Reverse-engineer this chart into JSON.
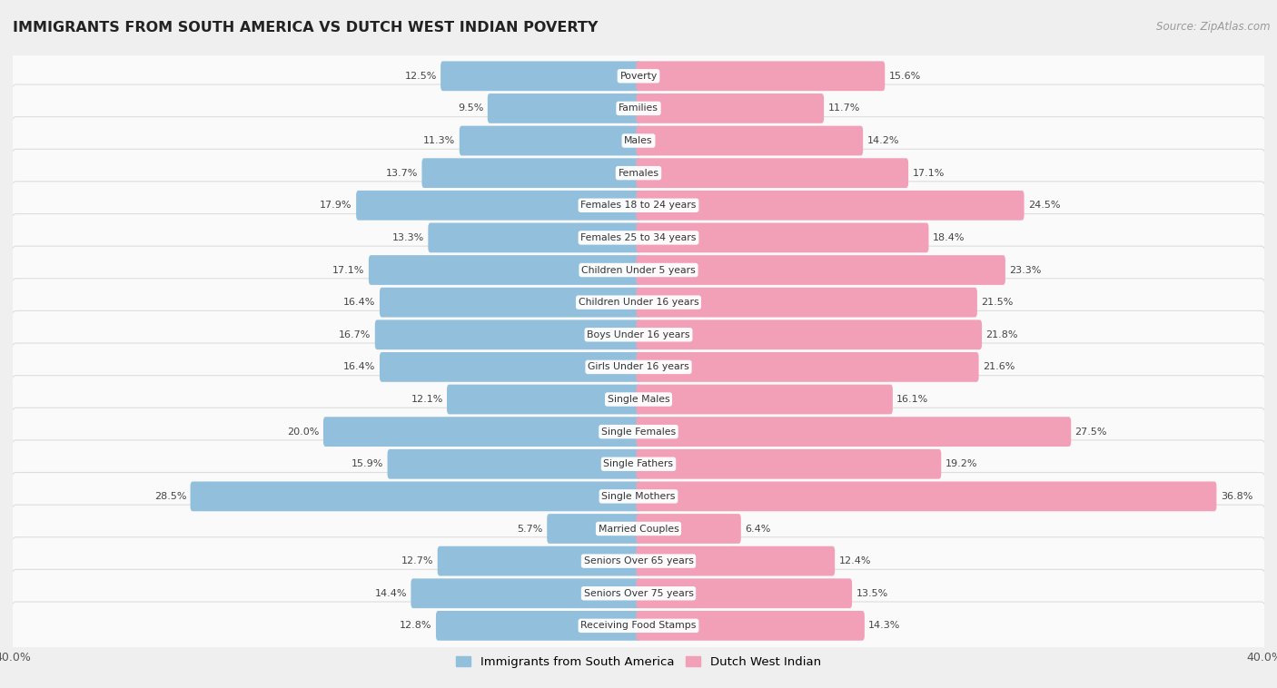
{
  "title": "IMMIGRANTS FROM SOUTH AMERICA VS DUTCH WEST INDIAN POVERTY",
  "source": "Source: ZipAtlas.com",
  "categories": [
    "Poverty",
    "Families",
    "Males",
    "Females",
    "Females 18 to 24 years",
    "Females 25 to 34 years",
    "Children Under 5 years",
    "Children Under 16 years",
    "Boys Under 16 years",
    "Girls Under 16 years",
    "Single Males",
    "Single Females",
    "Single Fathers",
    "Single Mothers",
    "Married Couples",
    "Seniors Over 65 years",
    "Seniors Over 75 years",
    "Receiving Food Stamps"
  ],
  "south_america": [
    12.5,
    9.5,
    11.3,
    13.7,
    17.9,
    13.3,
    17.1,
    16.4,
    16.7,
    16.4,
    12.1,
    20.0,
    15.9,
    28.5,
    5.7,
    12.7,
    14.4,
    12.8
  ],
  "dutch_west_indian": [
    15.6,
    11.7,
    14.2,
    17.1,
    24.5,
    18.4,
    23.3,
    21.5,
    21.8,
    21.6,
    16.1,
    27.5,
    19.2,
    36.8,
    6.4,
    12.4,
    13.5,
    14.3
  ],
  "color_blue": "#92c0dc",
  "color_pink": "#f2a0b8",
  "background_color": "#efefef",
  "row_color": "#fafafa",
  "xlim": 40.0,
  "legend_blue": "Immigrants from South America",
  "legend_pink": "Dutch West Indian"
}
